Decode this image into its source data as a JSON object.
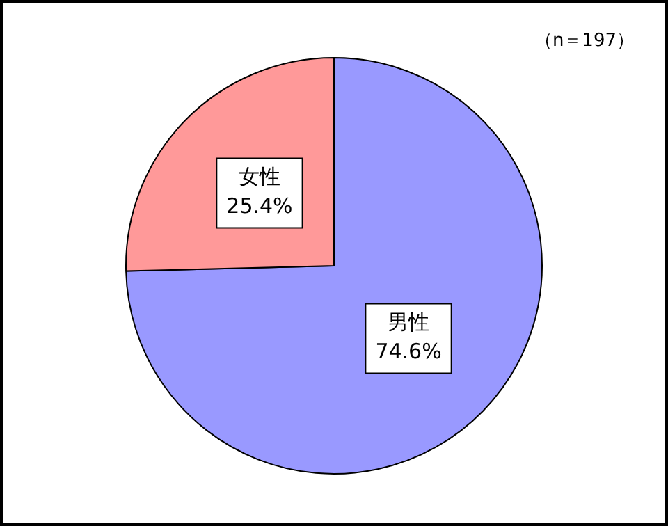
{
  "chart_data": {
    "type": "pie",
    "categories": [
      "男性",
      "女性"
    ],
    "values": [
      74.6,
      25.4
    ],
    "value_labels": [
      "74.6%",
      "25.4%"
    ],
    "colors": [
      "#9999ff",
      "#ff9999"
    ],
    "annotations": [
      "（n＝197）"
    ],
    "legend": false
  }
}
